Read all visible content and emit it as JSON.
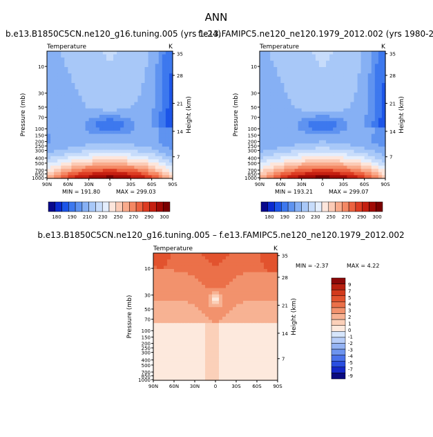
{
  "page": {
    "title": "ANN"
  },
  "colors": {
    "scale": [
      "#08088c",
      "#0a2bd0",
      "#1c55e8",
      "#3d78ee",
      "#5f93f0",
      "#86b0f4",
      "#a8c8f8",
      "#c7dcfb",
      "#e4eefd",
      "#fde6dc",
      "#fccbb6",
      "#f9ab8c",
      "#f48864",
      "#ec6240",
      "#dd3c22",
      "#c51f10",
      "#a10a05",
      "#7a0000"
    ],
    "diff": [
      "#0a0a80",
      "#1428c8",
      "#2a4ee0",
      "#4a72ea",
      "#6d94ef",
      "#94b3f4",
      "#b7cdf8",
      "#d7e6fc",
      "#fde9dd",
      "#fbd0b9",
      "#f7b293",
      "#f2926d",
      "#eb7049",
      "#e2532e",
      "#d23a1c",
      "#b81f0f",
      "#8c0808"
    ]
  },
  "chart_data": [
    {
      "type": "heatmap",
      "title": "b.e13.B1850C5CN.ne120_g16.tuning.005 (yrs 1-24)",
      "subtitle": "Temperature",
      "units": "K",
      "ylabel": "Pressure (mb)",
      "ylabel_right": "Height (km)",
      "x_ticks": [
        "90N",
        "60N",
        "30N",
        "0",
        "30S",
        "60S",
        "90S"
      ],
      "y_ticks": [
        "10",
        "30",
        "50",
        "70",
        "100",
        "150",
        "200",
        "250",
        "300",
        "400",
        "500",
        "700",
        "850",
        "1000"
      ],
      "height_ticks": [
        "35",
        "28",
        "21",
        "14",
        "7"
      ],
      "min_label": "MIN = 191.80",
      "max_label": "MAX = 299.03",
      "min": 191.8,
      "max": 299.03,
      "colorbar_labels": [
        "180",
        "190",
        "210",
        "230",
        "250",
        "270",
        "290",
        "300"
      ]
    },
    {
      "type": "heatmap",
      "title": "f.e13.FAMIPC5.ne120_ne120.1979_2012.002 (yrs 1980-2",
      "subtitle": "Temperature",
      "units": "K",
      "ylabel": "Pressure (mb)",
      "ylabel_right": "Height (km)",
      "x_ticks": [
        "90N",
        "60N",
        "30N",
        "0",
        "30S",
        "60S",
        "90S"
      ],
      "y_ticks": [
        "10",
        "30",
        "50",
        "70",
        "100",
        "150",
        "200",
        "250",
        "300",
        "400",
        "500",
        "700",
        "850",
        "1000"
      ],
      "height_ticks": [
        "35",
        "28",
        "21",
        "14",
        "7"
      ],
      "min_label": "MIN = 193.21",
      "max_label": "MAX = 299.07",
      "min": 193.21,
      "max": 299.07,
      "colorbar_labels": [
        "180",
        "190",
        "210",
        "230",
        "250",
        "270",
        "290",
        "300"
      ]
    },
    {
      "type": "heatmap",
      "title": "b.e13.B1850C5CN.ne120_g16.tuning.005 – f.e13.FAMIPC5.ne120_ne120.1979_2012.002",
      "subtitle": "Temperature",
      "units": "K",
      "ylabel": "Pressure (mb)",
      "ylabel_right": "Height (km)",
      "x_ticks": [
        "90N",
        "60N",
        "30N",
        "0",
        "30S",
        "60S",
        "90S"
      ],
      "y_ticks": [
        "10",
        "30",
        "50",
        "70",
        "100",
        "150",
        "200",
        "250",
        "300",
        "400",
        "500",
        "700",
        "850",
        "1000"
      ],
      "height_ticks": [
        "35",
        "28",
        "21",
        "14",
        "7"
      ],
      "min_label": "MIN =  -2.37",
      "max_label": "MAX =   4.22",
      "min": -2.37,
      "max": 4.22,
      "colorbar_labels": [
        "9",
        "7",
        "5",
        "4",
        "3",
        "2",
        "1",
        "0",
        "-1",
        "-2",
        "-3",
        "-4",
        "-5",
        "-7",
        "-9"
      ]
    }
  ]
}
